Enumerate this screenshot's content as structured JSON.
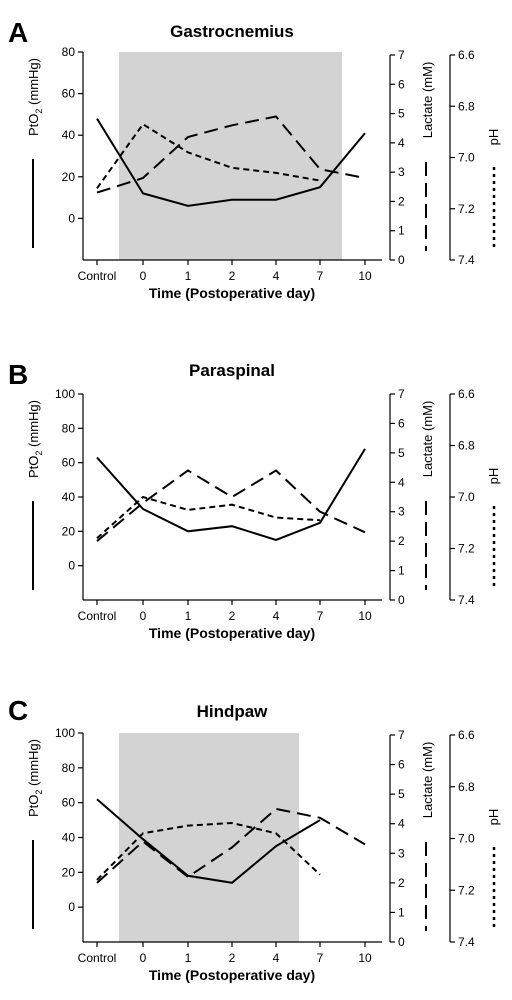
{
  "chart_data": [
    {
      "type": "line",
      "panel": "A",
      "title": "Gastrocnemius",
      "xlabel": "Time (Postoperative day)",
      "categories": [
        "Control",
        "0",
        "1",
        "2",
        "4",
        "7",
        "10"
      ],
      "shaded_region": {
        "from": "0",
        "to": "7"
      },
      "axes": {
        "pto2": {
          "label": "PtO2 (mmHg)",
          "range": [
            -20,
            80
          ],
          "ticks": [
            0,
            20,
            40,
            60,
            80
          ]
        },
        "lactate": {
          "label": "Lactate (mM)",
          "range": [
            0,
            7
          ],
          "ticks": [
            0,
            1,
            2,
            3,
            4,
            5,
            6,
            7
          ]
        },
        "ph": {
          "label": "pH",
          "range": [
            7.4,
            6.6
          ],
          "ticks": [
            6.6,
            6.8,
            7.0,
            7.2,
            7.4
          ],
          "tick_labels": [
            "6.6",
            "6.8",
            "7.0",
            "7.2",
            "7.4"
          ]
        }
      },
      "series": [
        {
          "axis": "pto2",
          "style": "solid",
          "values": [
            48,
            12,
            6,
            9,
            9,
            15,
            41
          ]
        },
        {
          "axis": "lactate",
          "style": "long-dash",
          "values": [
            2.3,
            2.8,
            4.2,
            4.6,
            4.9,
            3.1,
            2.8
          ]
        },
        {
          "axis": "ph",
          "style": "short-dash",
          "values": [
            7.12,
            6.87,
            6.98,
            7.04,
            7.06,
            7.09,
            null
          ]
        }
      ]
    },
    {
      "type": "line",
      "panel": "B",
      "title": "Paraspinal",
      "xlabel": "Time (Postoperative day)",
      "categories": [
        "Control",
        "0",
        "1",
        "2",
        "4",
        "7",
        "10"
      ],
      "axes": {
        "pto2": {
          "label": "PtO2 (mmHg)",
          "range": [
            -20,
            100
          ],
          "ticks": [
            0,
            20,
            40,
            60,
            80,
            100
          ]
        },
        "lactate": {
          "label": "Lactate (mM)",
          "range": [
            0,
            7
          ],
          "ticks": [
            0,
            1,
            2,
            3,
            4,
            5,
            6,
            7
          ]
        },
        "ph": {
          "label": "pH",
          "range": [
            7.4,
            6.6
          ],
          "ticks": [
            6.6,
            6.8,
            7.0,
            7.2,
            7.4
          ],
          "tick_labels": [
            "6.6",
            "6.8",
            "7.0",
            "7.2",
            "7.4"
          ]
        }
      },
      "series": [
        {
          "axis": "pto2",
          "style": "solid",
          "values": [
            63,
            33,
            20,
            23,
            15,
            25,
            68
          ]
        },
        {
          "axis": "lactate",
          "style": "long-dash",
          "values": [
            2.0,
            3.3,
            4.4,
            3.5,
            4.4,
            3.0,
            2.3
          ]
        },
        {
          "axis": "ph",
          "style": "short-dash",
          "values": [
            7.16,
            7.0,
            7.05,
            7.03,
            7.08,
            7.09,
            null
          ]
        }
      ]
    },
    {
      "type": "line",
      "panel": "C",
      "title": "Hindpaw",
      "xlabel": "Time (Postoperative day)",
      "categories": [
        "Control",
        "0",
        "1",
        "2",
        "4",
        "7",
        "10"
      ],
      "shaded_region": {
        "from": "0",
        "to": "4"
      },
      "axes": {
        "pto2": {
          "label": "PtO2 (mmHg)",
          "range": [
            -20,
            100
          ],
          "ticks": [
            0,
            20,
            40,
            60,
            80,
            100
          ]
        },
        "lactate": {
          "label": "Lactate (mM)",
          "range": [
            0,
            7
          ],
          "ticks": [
            0,
            1,
            2,
            3,
            4,
            5,
            6,
            7
          ]
        },
        "ph": {
          "label": "pH",
          "range": [
            7.4,
            6.6
          ],
          "ticks": [
            6.6,
            6.8,
            7.0,
            7.2,
            7.4
          ],
          "tick_labels": [
            "6.6",
            "6.8",
            "7.0",
            "7.2",
            "7.4"
          ]
        }
      },
      "series": [
        {
          "axis": "pto2",
          "style": "solid",
          "values": [
            62,
            39,
            18,
            14,
            35,
            50,
            null
          ]
        },
        {
          "axis": "lactate",
          "style": "long-dash",
          "values": [
            2.0,
            3.4,
            2.2,
            3.2,
            4.5,
            4.2,
            3.3
          ]
        },
        {
          "axis": "ph",
          "style": "short-dash",
          "values": [
            7.16,
            6.98,
            6.95,
            6.94,
            6.98,
            7.14,
            null
          ]
        }
      ]
    }
  ]
}
